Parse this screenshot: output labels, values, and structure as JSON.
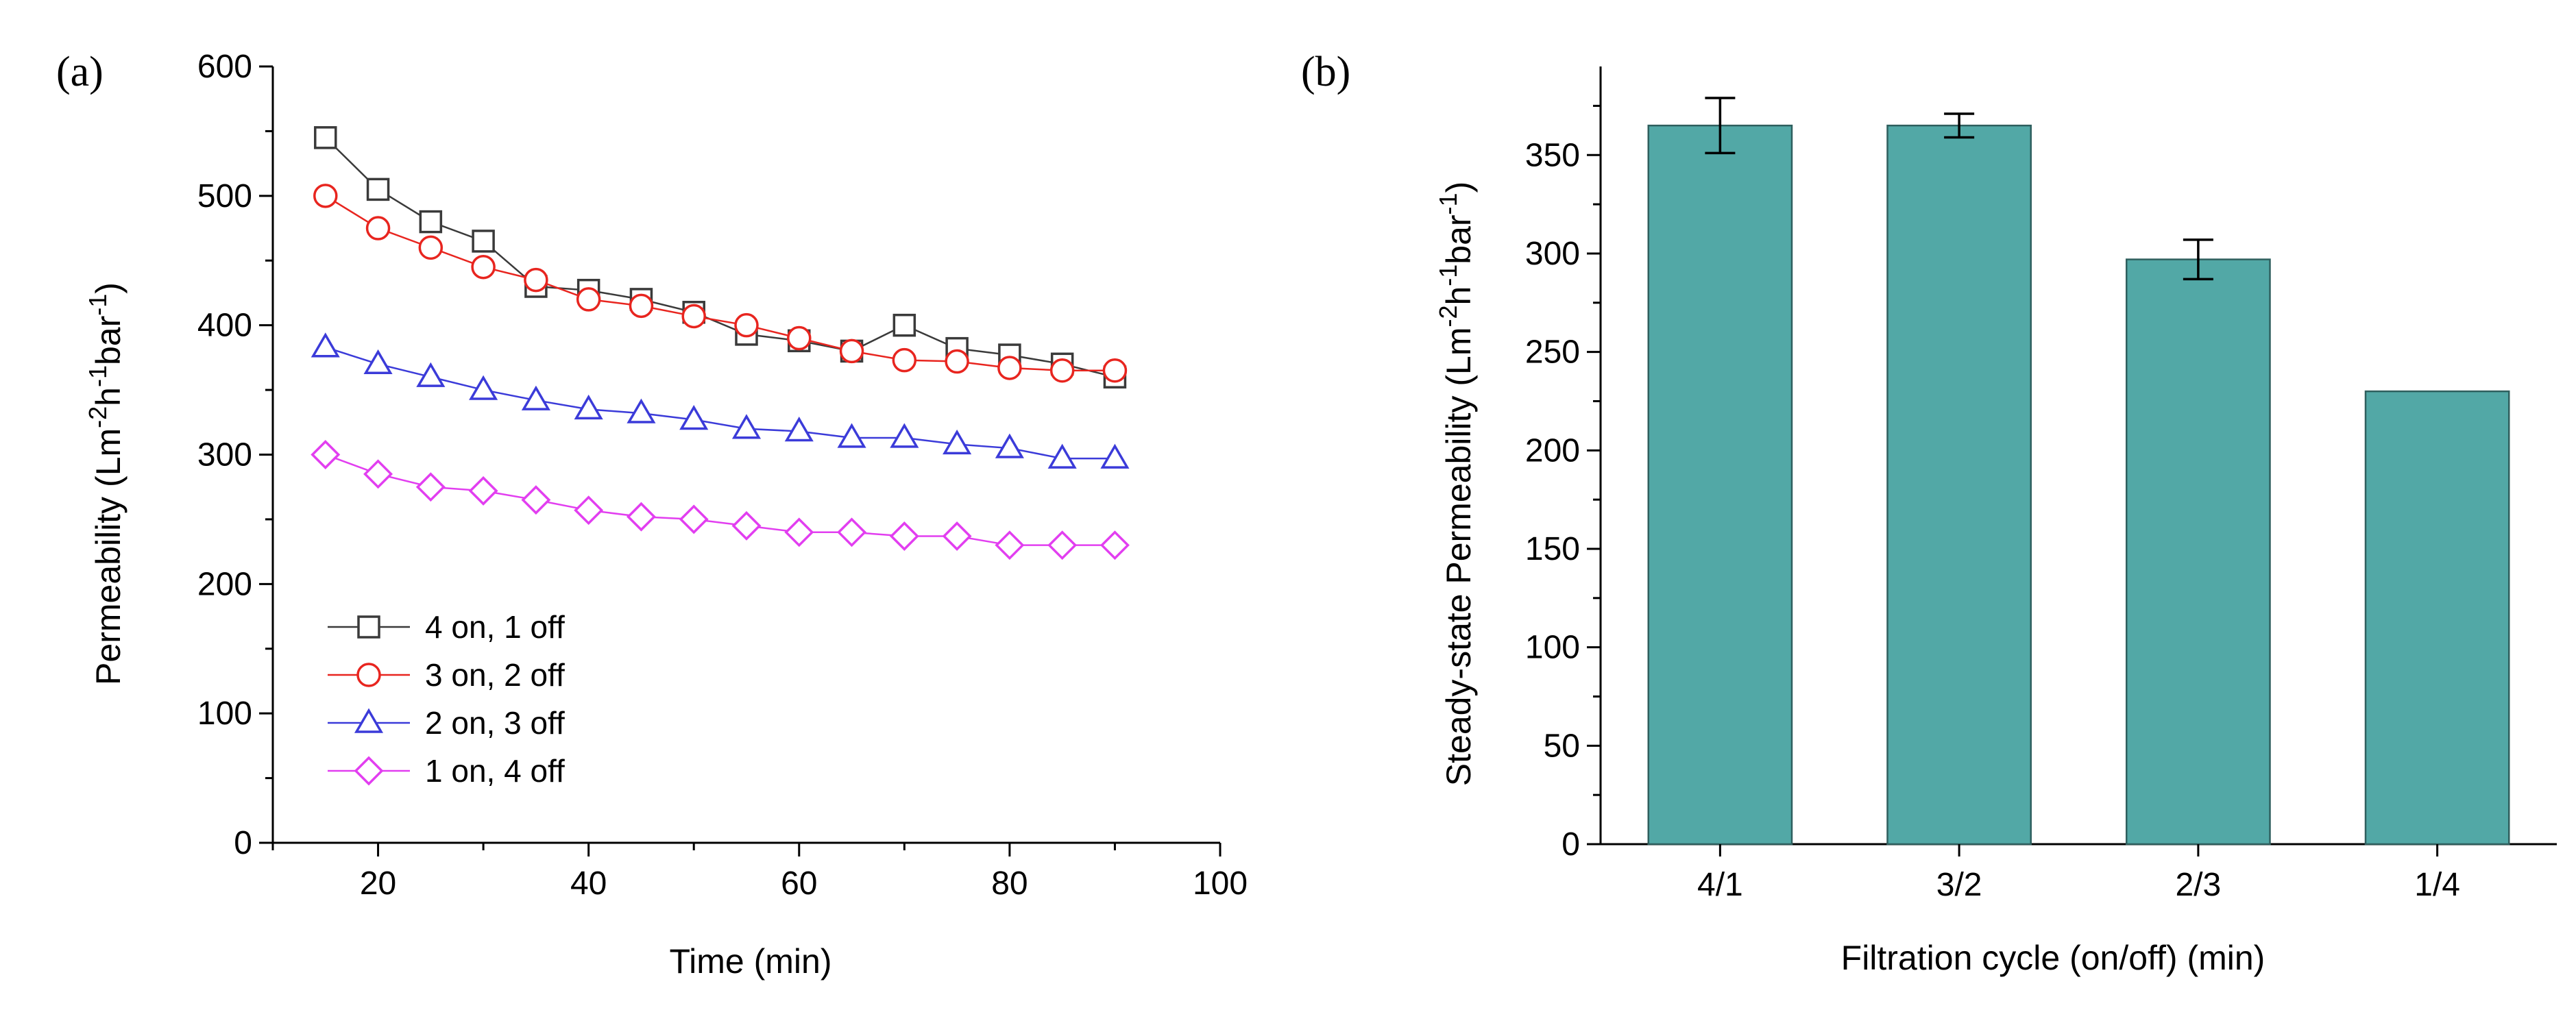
{
  "chart_data": [
    {
      "panel_label": "(a)",
      "type": "line",
      "title": "",
      "xlabel": "Time (min)",
      "ylabel": {
        "base": "Permeability (Lm",
        "sup1": "-2",
        "mid1": "h",
        "sup2": "-1",
        "mid2": "bar",
        "sup3": "-1",
        "end": ")"
      },
      "xlim": [
        10,
        100
      ],
      "ylim": [
        0,
        600
      ],
      "xticks": [
        20,
        40,
        60,
        80,
        100
      ],
      "yticks": [
        0,
        100,
        200,
        300,
        400,
        500,
        600
      ],
      "legend_position": "bottom-left",
      "x": [
        15,
        20,
        25,
        30,
        35,
        40,
        45,
        50,
        55,
        60,
        65,
        70,
        75,
        80,
        85,
        90
      ],
      "series": [
        {
          "name": "4 on, 1 off",
          "marker": "square",
          "color": "#3a3a3a",
          "values": [
            545,
            505,
            480,
            465,
            430,
            427,
            420,
            410,
            393,
            388,
            380,
            400,
            382,
            377,
            370,
            360
          ]
        },
        {
          "name": "3 on, 2 off",
          "marker": "circle",
          "color": "#e8251f",
          "values": [
            500,
            475,
            460,
            445,
            435,
            420,
            415,
            407,
            400,
            390,
            380,
            373,
            372,
            367,
            365,
            365
          ]
        },
        {
          "name": "2 on, 3 off",
          "marker": "triangle",
          "color": "#3b3bd9",
          "values": [
            383,
            370,
            360,
            350,
            342,
            335,
            332,
            327,
            320,
            318,
            313,
            313,
            308,
            305,
            297,
            297
          ]
        },
        {
          "name": "1 on, 4 off",
          "marker": "diamond",
          "color": "#e23ef0",
          "values": [
            300,
            285,
            275,
            272,
            265,
            257,
            252,
            250,
            245,
            240,
            240,
            237,
            237,
            230,
            230,
            230
          ]
        }
      ]
    },
    {
      "panel_label": "(b)",
      "type": "bar",
      "title": "",
      "xlabel": "Filtration cycle (on/off) (min)",
      "ylabel": {
        "base": "Steady-state Permeability (Lm",
        "sup1": "-2",
        "mid1": "h",
        "sup2": "-1",
        "mid2": "bar",
        "sup3": "-1",
        "end": ")"
      },
      "ylim": [
        0,
        395
      ],
      "yticks": [
        0,
        50,
        100,
        150,
        200,
        250,
        300,
        350
      ],
      "categories": [
        "4/1",
        "3/2",
        "2/3",
        "1/4"
      ],
      "values": [
        365,
        365,
        297,
        230
      ],
      "errors": [
        14,
        6,
        10,
        0
      ],
      "bar_color": "#52a8a6"
    }
  ]
}
